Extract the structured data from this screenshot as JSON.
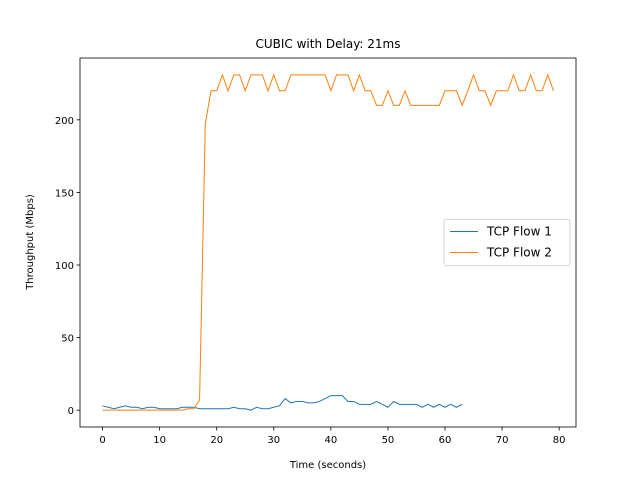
{
  "chart_data": {
    "type": "line",
    "title": "CUBIC with Delay: 21ms",
    "x_label": "Time (seconds)",
    "y_label": "Throughput (Mbps)",
    "x": [
      0,
      1,
      2,
      3,
      4,
      5,
      6,
      7,
      8,
      9,
      10,
      11,
      12,
      13,
      14,
      15,
      16,
      17,
      18,
      19,
      20,
      21,
      22,
      23,
      24,
      25,
      26,
      27,
      28,
      29,
      30,
      31,
      32,
      33,
      34,
      35,
      36,
      37,
      38,
      39,
      40,
      41,
      42,
      43,
      44,
      45,
      46,
      47,
      48,
      49,
      50,
      51,
      52,
      53,
      54,
      55,
      56,
      57,
      58,
      59,
      60,
      61,
      62,
      63,
      64,
      65,
      66,
      67,
      68,
      69,
      70,
      71,
      72,
      73,
      74,
      75,
      76,
      77,
      78,
      79
    ],
    "series": [
      {
        "name": "TCP Flow 1",
        "color": "#1f77b4",
        "values": [
          3,
          2,
          1,
          2,
          3,
          2,
          2,
          1,
          2,
          2,
          1,
          1,
          1,
          1,
          2,
          2,
          2,
          1,
          1,
          1,
          1,
          1,
          1,
          2,
          1,
          1,
          0,
          2,
          1,
          1,
          2,
          3,
          8,
          5,
          6,
          6,
          5,
          5,
          6,
          8,
          10,
          10,
          10,
          6,
          6,
          4,
          4,
          4,
          6,
          4,
          2,
          6,
          4,
          4,
          4,
          4,
          2,
          4,
          2,
          4,
          2,
          4,
          2,
          4,
          null,
          null,
          null,
          null,
          null,
          null,
          null,
          null,
          null,
          null,
          null,
          null,
          null,
          null,
          null,
          null
        ]
      },
      {
        "name": "TCP Flow 2",
        "color": "#ff7f0e",
        "values": [
          0,
          0,
          0,
          0,
          0,
          0,
          0,
          0,
          0,
          0,
          0,
          0,
          0,
          0,
          0,
          1,
          1,
          7,
          197,
          220,
          220,
          231,
          220,
          231,
          231,
          220,
          231,
          231,
          231,
          220,
          231,
          220,
          220,
          231,
          231,
          231,
          231,
          231,
          231,
          231,
          220,
          231,
          231,
          231,
          220,
          231,
          220,
          220,
          210,
          210,
          220,
          210,
          210,
          220,
          210,
          210,
          210,
          210,
          210,
          210,
          220,
          220,
          220,
          210,
          220,
          231,
          220,
          220,
          210,
          220,
          220,
          220,
          231,
          220,
          220,
          231,
          220,
          220,
          231,
          220
        ]
      }
    ],
    "xlim": [
      -3.95,
      82.95
    ],
    "xticks": [
      0,
      10,
      20,
      30,
      40,
      50,
      60,
      70,
      80
    ],
    "ylim": [
      -11.6,
      242.6
    ],
    "yticks": [
      0,
      50,
      100,
      150,
      200
    ],
    "legend": "center right"
  }
}
